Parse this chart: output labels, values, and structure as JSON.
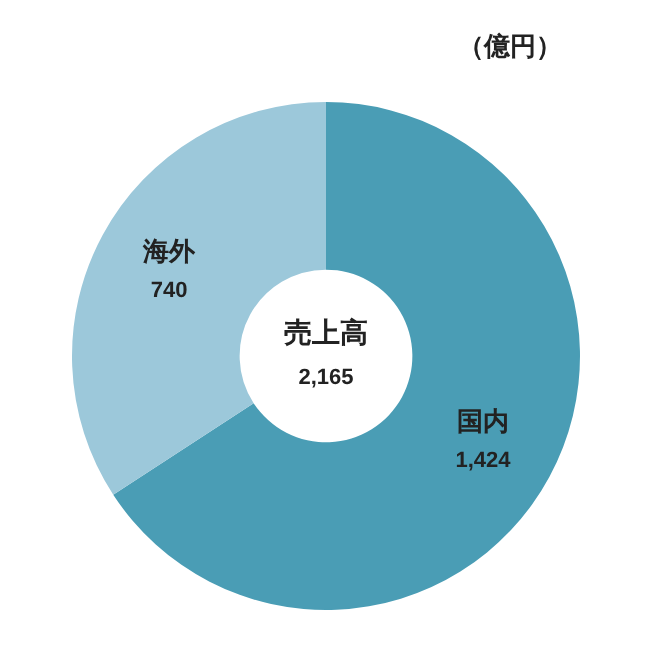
{
  "chart_data": {
    "type": "donut",
    "title": "（億円）",
    "categories": [
      "国内",
      "海外"
    ],
    "values": [
      1424,
      740
    ],
    "colors": [
      "#4a9db5",
      "#9cc8da"
    ],
    "value_labels": [
      "1,424",
      "740"
    ],
    "annotations": [
      "売上高",
      "2,165"
    ],
    "legend": false
  }
}
